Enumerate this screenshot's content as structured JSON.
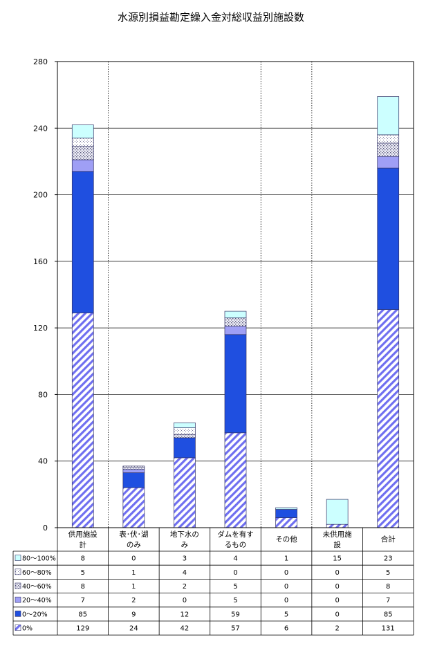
{
  "chart_data": {
    "type": "bar",
    "stacked": true,
    "title": "水源別損益勘定繰入金対総収益別施設数",
    "categories": [
      [
        "供用施設",
        "計"
      ],
      [
        "表･伏･湖",
        "のみ"
      ],
      [
        "地下水の",
        "み"
      ],
      [
        "ダムを有す",
        "るもの"
      ],
      [
        "その他"
      ],
      [
        "未供用施",
        "設"
      ],
      [
        "合計"
      ]
    ],
    "ylim": [
      0,
      280
    ],
    "yticks": [
      0,
      40,
      80,
      120,
      160,
      200,
      240,
      280
    ],
    "grid": "horizontal",
    "series": [
      {
        "name": "0%",
        "values": [
          129,
          24,
          42,
          57,
          6,
          2,
          131
        ],
        "color": "#6666ff",
        "pattern": "hatch"
      },
      {
        "name": "0～20%",
        "values": [
          85,
          9,
          12,
          59,
          5,
          0,
          85
        ],
        "color": "#1f4fe0",
        "pattern": "solid"
      },
      {
        "name": "20～40%",
        "values": [
          7,
          2,
          0,
          5,
          0,
          0,
          7
        ],
        "color": "#9f9ff5",
        "pattern": "solid"
      },
      {
        "name": "40～60%",
        "values": [
          8,
          1,
          2,
          5,
          0,
          0,
          8
        ],
        "color": "#d0d0ee",
        "pattern": "dots"
      },
      {
        "name": "60～80%",
        "values": [
          5,
          1,
          4,
          0,
          0,
          0,
          5
        ],
        "color": "#ffffff",
        "pattern": "light-dots"
      },
      {
        "name": "80～100%",
        "values": [
          8,
          0,
          3,
          4,
          1,
          15,
          23
        ],
        "color": "#ccffff",
        "pattern": "solid"
      }
    ],
    "table_row_order": [
      "80～100%",
      "60～80%",
      "40～60%",
      "20～40%",
      "0～20%",
      "0%"
    ]
  }
}
